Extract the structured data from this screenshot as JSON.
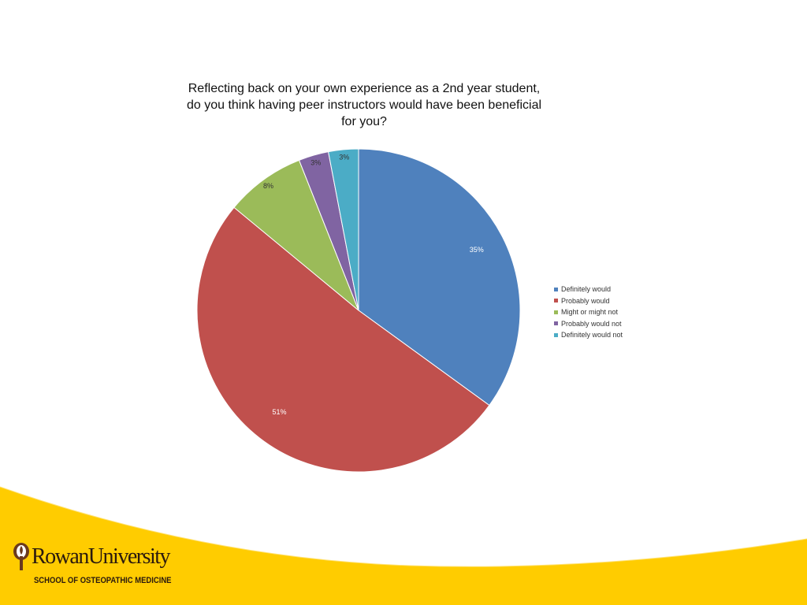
{
  "chart_data": {
    "type": "pie",
    "title": "Reflecting back on your own experience as a 2nd year student, do you think having peer instructors would have been beneficial for you?",
    "categories": [
      "Definitely would",
      "Probably would",
      "Might or might not",
      "Probably would not",
      "Definitely would not"
    ],
    "values": [
      35,
      51,
      8,
      3,
      3
    ],
    "data_labels": [
      "35%",
      "51%",
      "8%",
      "3%",
      "3%"
    ],
    "colors": [
      "#4f81bd",
      "#c0504d",
      "#9bbb59",
      "#8064a2",
      "#4bacc6"
    ],
    "start_angle": "12 o'clock",
    "direction": "clockwise",
    "legend_position": "right"
  },
  "branding": {
    "logo_text": "RowanUniversity",
    "school_text": "SCHOOL OF OSTEOPATHIC MEDICINE",
    "accent_color": "#ffcc00"
  }
}
